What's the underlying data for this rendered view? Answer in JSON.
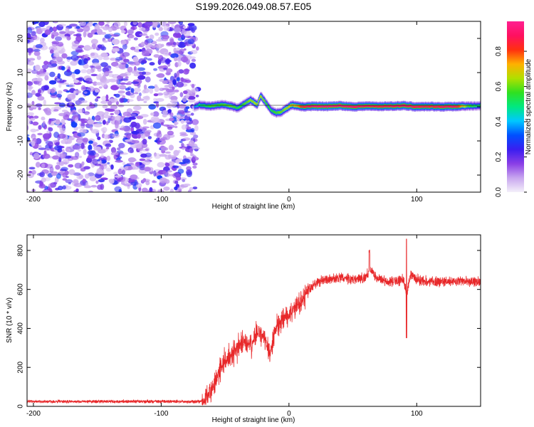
{
  "title": "S199.2026.049.08.57.E05",
  "chart_data": [
    {
      "type": "heatmap",
      "xlabel": "Height of straight line (km)",
      "ylabel": "Frequency (Hz)",
      "xlim": [
        -205,
        150
      ],
      "ylim": [
        -25,
        25
      ],
      "xticks": [
        -200,
        -100,
        0,
        100
      ],
      "yticks": [
        -20,
        -10,
        0,
        10,
        20
      ],
      "noise_region": [
        -205,
        -72
      ],
      "ridge": {
        "x": [
          -74,
          -70,
          -65,
          -60,
          -55,
          -50,
          -45,
          -40,
          -35,
          -30,
          -25,
          -22,
          -18,
          -14,
          -10,
          -6,
          -2,
          2,
          6,
          10,
          20,
          30,
          40,
          50,
          60,
          70,
          80,
          90,
          100,
          110,
          120,
          130,
          140,
          150
        ],
        "freq": [
          0,
          0.5,
          0.3,
          0.2,
          0.5,
          0.6,
          0.1,
          -0.4,
          0.8,
          2.0,
          0.6,
          3.2,
          1.0,
          -1.0,
          -1.8,
          -1.5,
          -0.5,
          0.5,
          0.2,
          0.0,
          0.2,
          0.1,
          0.3,
          0.0,
          0.2,
          0.1,
          0.2,
          0.3,
          0.0,
          0.1,
          0.0,
          0.1,
          0.2,
          0.3
        ],
        "amplitude": [
          0.35,
          0.5,
          0.55,
          0.6,
          0.58,
          0.6,
          0.62,
          0.55,
          0.6,
          0.65,
          0.68,
          0.7,
          0.6,
          0.55,
          0.6,
          0.62,
          0.68,
          0.72,
          0.75,
          0.85,
          0.95,
          0.95,
          0.95,
          0.92,
          0.9,
          0.88,
          0.9,
          0.92,
          0.9,
          0.88,
          0.9,
          0.92,
          0.6,
          0.5
        ]
      }
    },
    {
      "type": "line",
      "xlabel": "Height of straight line (km)",
      "ylabel": "SNR (10 * v/v)",
      "xlim": [
        -205,
        150
      ],
      "ylim": [
        0,
        880
      ],
      "xticks": [
        -200,
        -100,
        0,
        100
      ],
      "yticks": [
        0,
        200,
        400,
        600,
        800
      ],
      "series": [
        {
          "name": "SNR",
          "color": "#e8282a",
          "x": [
            -205,
            -150,
            -100,
            -70,
            -65,
            -60,
            -55,
            -50,
            -45,
            -40,
            -35,
            -30,
            -25,
            -20,
            -15,
            -10,
            -5,
            0,
            5,
            10,
            15,
            20,
            30,
            40,
            50,
            60,
            63,
            70,
            80,
            90,
            92,
            95,
            100,
            110,
            120,
            130,
            140,
            150
          ],
          "y": [
            25,
            25,
            25,
            25,
            40,
            90,
            170,
            230,
            260,
            300,
            330,
            310,
            380,
            350,
            280,
            400,
            440,
            470,
            510,
            550,
            600,
            630,
            650,
            660,
            650,
            660,
            700,
            650,
            640,
            650,
            560,
            680,
            650,
            640,
            640,
            640,
            640,
            640
          ]
        }
      ]
    }
  ],
  "colorbar": {
    "label": "Normalized spectral amplitude",
    "ticks": [
      "0.0",
      "0.2",
      "0.4",
      "0.6",
      "0.8"
    ],
    "tick_values": [
      0.0,
      0.2,
      0.4,
      0.6,
      0.8
    ],
    "range": [
      0,
      0.97
    ],
    "stops": [
      "#f4f0fa",
      "#c8a6ef",
      "#8a3ee6",
      "#3a1ef0",
      "#0050ff",
      "#00c8ff",
      "#00e880",
      "#30e020",
      "#b0e000",
      "#ffb000",
      "#ff3010",
      "#ff1060",
      "#ff2090"
    ]
  }
}
